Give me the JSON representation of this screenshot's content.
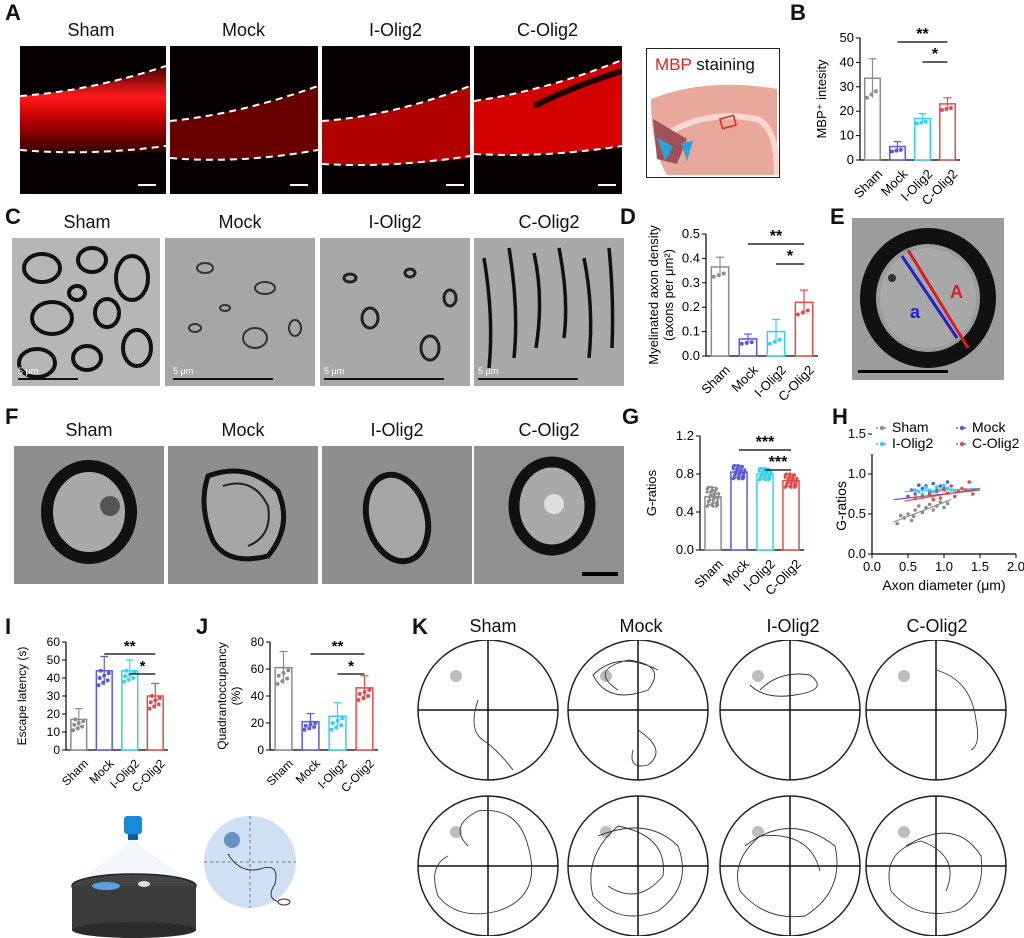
{
  "figure": {
    "panels": {
      "A": "A",
      "B": "B",
      "C": "C",
      "D": "D",
      "E": "E",
      "F": "F",
      "G": "G",
      "H": "H",
      "I": "I",
      "J": "J",
      "K": "K"
    },
    "groups": [
      "Sham",
      "Mock",
      "I-Olig2",
      "C-Olig2"
    ],
    "colors": {
      "Sham": "#8c8c8c",
      "Mock": "#5b5bd6",
      "I-Olig2": "#35d0ee",
      "C-Olig2": "#e24c4c",
      "mbp": "#ff2020",
      "sig": "#000000"
    },
    "schematic": {
      "mbp_word": "MBP",
      "staining_word": "staining"
    },
    "em_scale": [
      "5 μm",
      "5 μm",
      "5 μm",
      "5 μm"
    ],
    "e_labels": {
      "inner": "a",
      "outer": "A"
    },
    "water_maze_icons": [
      "camera-icon",
      "pool-icon",
      "mouse-icon",
      "platform-icon"
    ]
  },
  "chart_data": [
    {
      "panel": "B",
      "type": "bar",
      "categories": [
        "Sham",
        "Mock",
        "I-Olig2",
        "C-Olig2"
      ],
      "values": [
        33.5,
        5.5,
        17,
        23
      ],
      "errors": [
        8,
        2,
        2,
        2.5
      ],
      "ylabel": "MBP⁺ intesity",
      "ylim": [
        0,
        50
      ],
      "yticks": [
        0,
        10,
        20,
        30,
        40,
        50
      ],
      "significance": [
        {
          "from": "Mock",
          "to": "C-Olig2",
          "label": "**"
        },
        {
          "from": "I-Olig2",
          "to": "C-Olig2",
          "label": "*"
        }
      ]
    },
    {
      "panel": "D",
      "type": "bar",
      "categories": [
        "Sham",
        "Mock",
        "I-Olig2",
        "C-Olig2"
      ],
      "values": [
        0.365,
        0.07,
        0.1,
        0.22
      ],
      "errors": [
        0.04,
        0.02,
        0.05,
        0.05
      ],
      "ylabel": "Myelinated axon density (axons per μm²)",
      "ylabel_lines": [
        "Myelinated axon density",
        "(axons per μm²)"
      ],
      "ylim": [
        0,
        0.5
      ],
      "yticks": [
        "0.0",
        "0.1",
        "0.2",
        "0.3",
        "0.4",
        "0.5"
      ],
      "significance": [
        {
          "from": "Mock",
          "to": "C-Olig2",
          "label": "**"
        },
        {
          "from": "I-Olig2",
          "to": "C-Olig2",
          "label": "*"
        }
      ]
    },
    {
      "panel": "G",
      "type": "bar",
      "categories": [
        "Sham",
        "Mock",
        "I-Olig2",
        "C-Olig2"
      ],
      "values": [
        0.56,
        0.82,
        0.8,
        0.73
      ],
      "errors": [
        0.1,
        0.07,
        0.06,
        0.07
      ],
      "ylabel": "G-ratios",
      "ylim": [
        0,
        1.2
      ],
      "yticks": [
        "0.0",
        "0.4",
        "0.8",
        "1.2"
      ],
      "significance": [
        {
          "from": "Mock",
          "to": "C-Olig2",
          "label": "***"
        },
        {
          "from": "I-Olig2",
          "to": "C-Olig2",
          "label": "***"
        }
      ]
    },
    {
      "panel": "H",
      "type": "scatter",
      "xlabel": "Axon diameter (μm)",
      "ylabel": "G-ratios",
      "xlim": [
        0,
        2
      ],
      "ylim": [
        0,
        1.2
      ],
      "xticks": [
        "0.0",
        "0.5",
        "1.0",
        "1.5",
        "2.0"
      ],
      "yticks": [
        "0.0",
        "0.5",
        "1.0",
        "1.5"
      ],
      "legend": "top",
      "series": [
        {
          "name": "Sham",
          "points": [
            [
              0.35,
              0.38
            ],
            [
              0.45,
              0.45
            ],
            [
              0.5,
              0.5
            ],
            [
              0.55,
              0.42
            ],
            [
              0.6,
              0.55
            ],
            [
              0.65,
              0.6
            ],
            [
              0.7,
              0.52
            ],
            [
              0.75,
              0.58
            ],
            [
              0.8,
              0.62
            ],
            [
              0.85,
              0.55
            ],
            [
              0.9,
              0.6
            ],
            [
              0.95,
              0.65
            ],
            [
              1.0,
              0.58
            ],
            [
              1.05,
              0.63
            ],
            [
              0.4,
              0.48
            ],
            [
              0.58,
              0.47
            ]
          ],
          "fit": [
            [
              0.3,
              0.4
            ],
            [
              1.1,
              0.68
            ]
          ]
        },
        {
          "name": "Mock",
          "points": [
            [
              0.5,
              0.72
            ],
            [
              0.55,
              0.8
            ],
            [
              0.6,
              0.75
            ],
            [
              0.7,
              0.82
            ],
            [
              0.75,
              0.85
            ],
            [
              0.8,
              0.78
            ],
            [
              0.85,
              0.88
            ],
            [
              0.9,
              0.8
            ],
            [
              0.95,
              0.85
            ],
            [
              1.0,
              0.82
            ],
            [
              1.05,
              0.9
            ],
            [
              0.65,
              0.86
            ]
          ],
          "fit": [
            [
              0.3,
              0.68
            ],
            [
              1.5,
              0.8
            ]
          ]
        },
        {
          "name": "I-Olig2",
          "points": [
            [
              0.6,
              0.8
            ],
            [
              0.65,
              0.78
            ],
            [
              0.7,
              0.75
            ],
            [
              0.75,
              0.83
            ],
            [
              0.8,
              0.8
            ],
            [
              0.85,
              0.78
            ],
            [
              0.9,
              0.84
            ],
            [
              0.95,
              0.8
            ],
            [
              1.0,
              0.86
            ],
            [
              1.05,
              0.82
            ],
            [
              1.1,
              0.8
            ],
            [
              1.15,
              0.78
            ]
          ],
          "fit": [
            [
              0.45,
              0.78
            ],
            [
              1.5,
              0.82
            ]
          ]
        },
        {
          "name": "C-Olig2",
          "points": [
            [
              0.6,
              0.7
            ],
            [
              0.7,
              0.72
            ],
            [
              0.8,
              0.75
            ],
            [
              0.9,
              0.78
            ],
            [
              0.95,
              0.7
            ],
            [
              1.0,
              0.8
            ],
            [
              1.05,
              0.76
            ],
            [
              1.1,
              0.85
            ],
            [
              1.15,
              0.72
            ],
            [
              1.2,
              0.78
            ],
            [
              1.25,
              0.82
            ],
            [
              1.3,
              0.8
            ],
            [
              1.35,
              0.9
            ],
            [
              0.85,
              0.68
            ],
            [
              1.4,
              0.75
            ]
          ],
          "fit": [
            [
              0.45,
              0.66
            ],
            [
              1.5,
              0.82
            ]
          ]
        }
      ]
    },
    {
      "panel": "I",
      "type": "bar",
      "categories": [
        "Sham",
        "Mock",
        "I-Olig2",
        "C-Olig2"
      ],
      "values": [
        17,
        44,
        44,
        30
      ],
      "errors": [
        6,
        8,
        6,
        7
      ],
      "ylabel": "Escape latency (s)",
      "ylim": [
        0,
        60
      ],
      "yticks": [
        0,
        10,
        20,
        30,
        40,
        50,
        60
      ],
      "significance": [
        {
          "from": "Mock",
          "to": "C-Olig2",
          "label": "**"
        },
        {
          "from": "I-Olig2",
          "to": "C-Olig2",
          "label": "*"
        }
      ]
    },
    {
      "panel": "J",
      "type": "bar",
      "categories": [
        "Sham",
        "Mock",
        "I-Olig2",
        "C-Olig2"
      ],
      "values": [
        61,
        21,
        25,
        46
      ],
      "errors": [
        12,
        6,
        10,
        9
      ],
      "ylabel": "Quadrantoccupancy (%)",
      "ylabel_lines": [
        "Quadrantoccupancy",
        "(%)"
      ],
      "ylim": [
        0,
        80
      ],
      "yticks": [
        0,
        20,
        40,
        60,
        80
      ],
      "significance": [
        {
          "from": "Mock",
          "to": "C-Olig2",
          "label": "**"
        },
        {
          "from": "I-Olig2",
          "to": "C-Olig2",
          "label": "*"
        }
      ]
    }
  ]
}
